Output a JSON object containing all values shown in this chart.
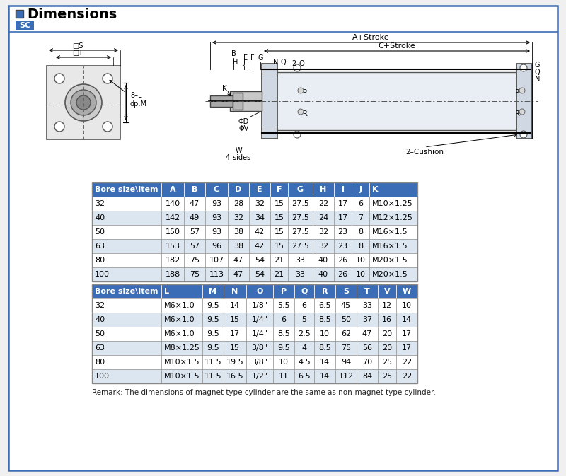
{
  "title": "Dimensions",
  "sc_label": "SC",
  "table1_headers": [
    "Bore size\\Item",
    "A",
    "B",
    "C",
    "D",
    "E",
    "F",
    "G",
    "H",
    "I",
    "J",
    "K"
  ],
  "table1_rows": [
    [
      "32",
      "140",
      "47",
      "93",
      "28",
      "32",
      "15",
      "27.5",
      "22",
      "17",
      "6",
      "M10×1.25"
    ],
    [
      "40",
      "142",
      "49",
      "93",
      "32",
      "34",
      "15",
      "27.5",
      "24",
      "17",
      "7",
      "M12×1.25"
    ],
    [
      "50",
      "150",
      "57",
      "93",
      "38",
      "42",
      "15",
      "27.5",
      "32",
      "23",
      "8",
      "M16×1.5"
    ],
    [
      "63",
      "153",
      "57",
      "96",
      "38",
      "42",
      "15",
      "27.5",
      "32",
      "23",
      "8",
      "M16×1.5"
    ],
    [
      "80",
      "182",
      "75",
      "107",
      "47",
      "54",
      "21",
      "33",
      "40",
      "26",
      "10",
      "M20×1.5"
    ],
    [
      "100",
      "188",
      "75",
      "113",
      "47",
      "54",
      "21",
      "33",
      "40",
      "26",
      "10",
      "M20×1.5"
    ]
  ],
  "table2_headers": [
    "Bore size\\Item",
    "L",
    "M",
    "N",
    "O",
    "P",
    "Q",
    "R",
    "S",
    "T",
    "V",
    "W"
  ],
  "table2_rows": [
    [
      "32",
      "M6×1.0",
      "9.5",
      "14",
      "1/8\"",
      "5.5",
      "6",
      "6.5",
      "45",
      "33",
      "12",
      "10"
    ],
    [
      "40",
      "M6×1.0",
      "9.5",
      "15",
      "1/4\"",
      "6",
      "5",
      "8.5",
      "50",
      "37",
      "16",
      "14"
    ],
    [
      "50",
      "M6×1.0",
      "9.5",
      "17",
      "1/4\"",
      "8.5",
      "2.5",
      "10",
      "62",
      "47",
      "20",
      "17"
    ],
    [
      "63",
      "M8×1.25",
      "9.5",
      "15",
      "3/8\"",
      "9.5",
      "4",
      "8.5",
      "75",
      "56",
      "20",
      "17"
    ],
    [
      "80",
      "M10×1.5",
      "11.5",
      "19.5",
      "3/8\"",
      "10",
      "4.5",
      "14",
      "94",
      "70",
      "25",
      "22"
    ],
    [
      "100",
      "M10×1.5",
      "11.5",
      "16.5",
      "1/2\"",
      "11",
      "6.5",
      "14",
      "112",
      "84",
      "25",
      "22"
    ]
  ],
  "remark": "Remark: The dimensions of magnet type cylinder are the same as non-magnet type cylinder.",
  "header_bg": "#3a6db5",
  "header_color": "#ffffff",
  "row_bg_even": "#ffffff",
  "row_bg_odd": "#dce6f1",
  "border_color": "#888888",
  "outer_border": "#3a6db5",
  "bg_color": "#ffffff",
  "page_bg": "#f0f0f0"
}
